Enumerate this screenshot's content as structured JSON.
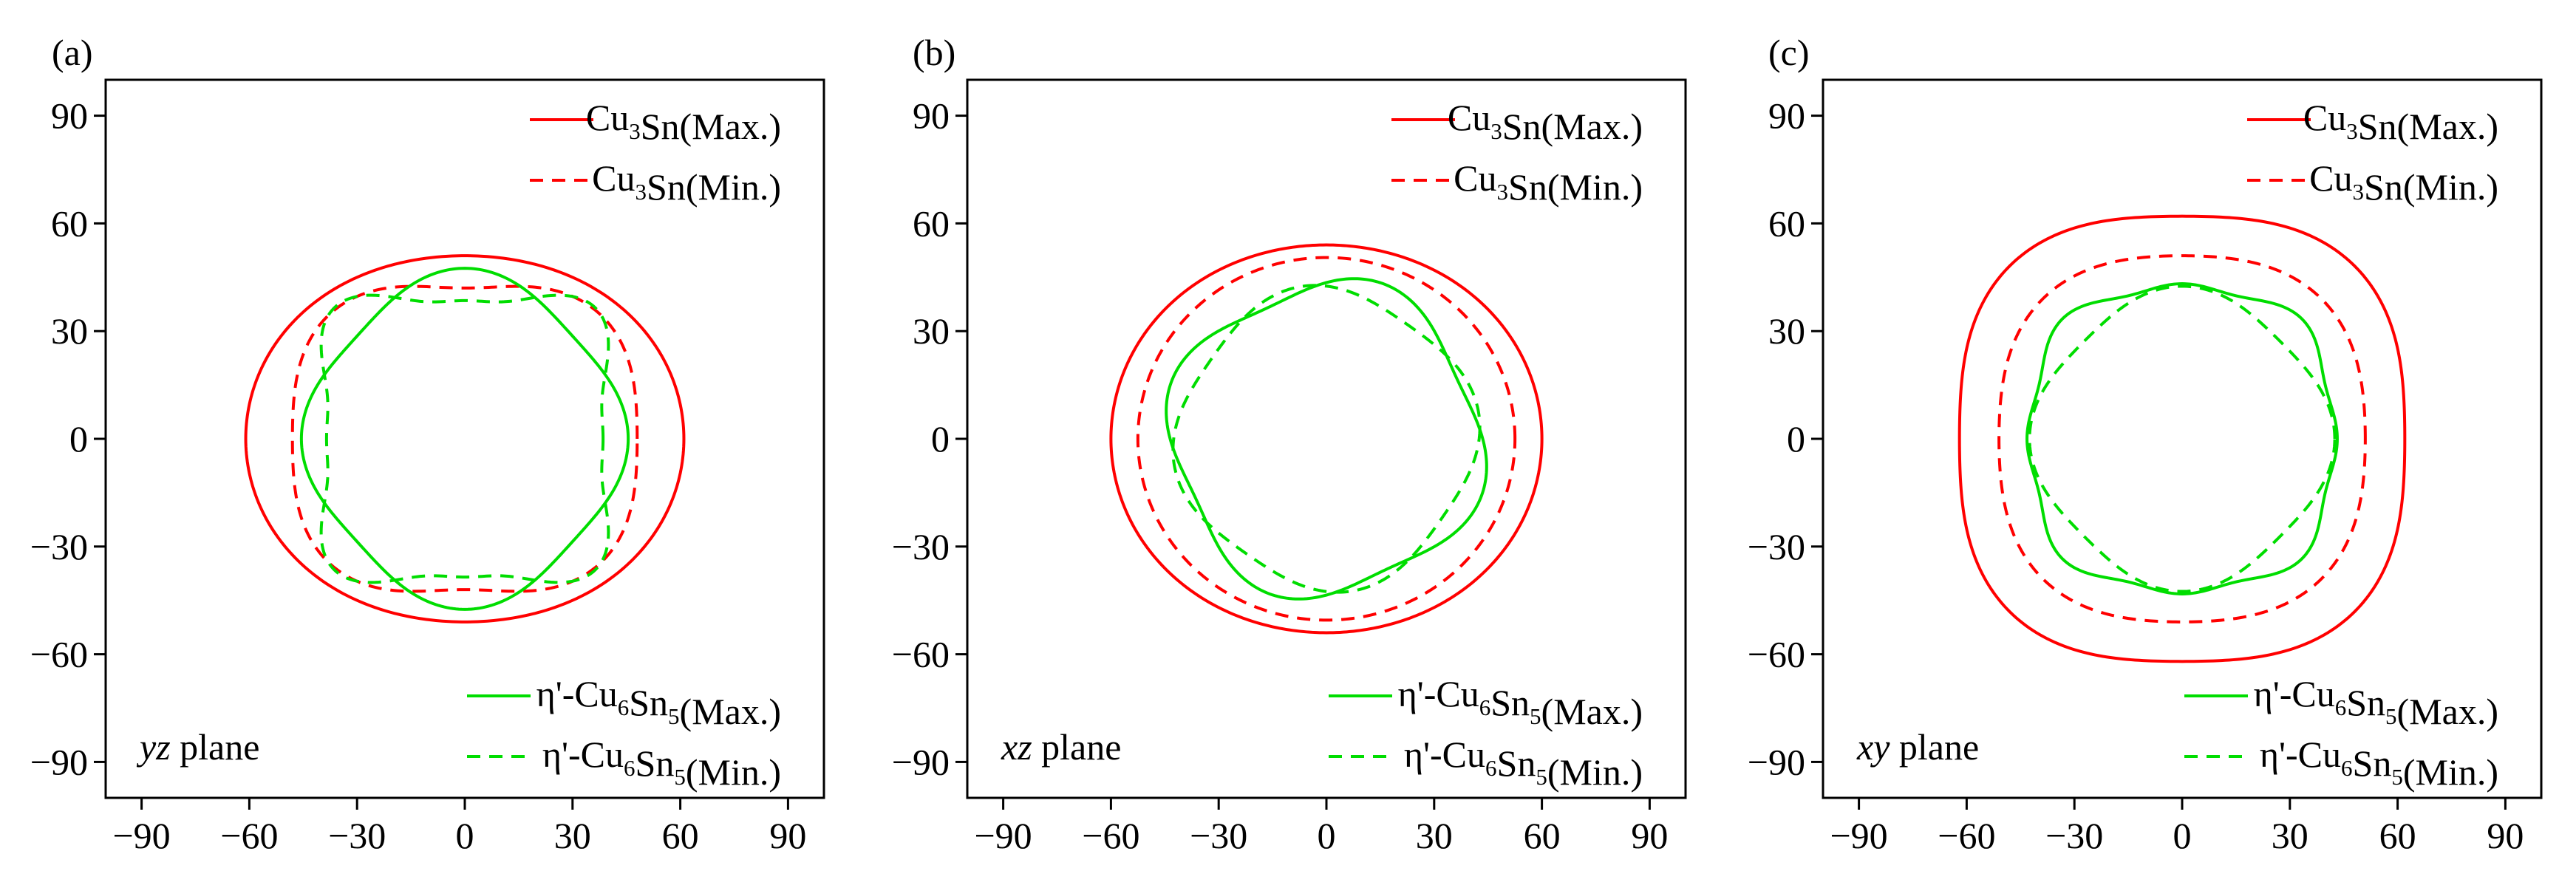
{
  "chart_data": [
    {
      "panel_label": "(a)",
      "type": "line",
      "polar": true,
      "plane_label": {
        "italic": "yz",
        "rest": " plane"
      },
      "xlim": [
        -100,
        100
      ],
      "ylim": [
        -100,
        100
      ],
      "xticks": [
        -90,
        -60,
        -30,
        0,
        30,
        60,
        90
      ],
      "yticks": [
        -90,
        -60,
        -30,
        0,
        30,
        60,
        90
      ],
      "series": [
        {
          "name": "Cu₃Sn(Max.)",
          "color": "#ff0000",
          "dash": "solid",
          "radius": {
            "base": 56,
            "terms": [
              {
                "n": 2,
                "amp": 5,
                "phase": 0
              }
            ]
          }
        },
        {
          "name": "Cu₃Sn(Min.)",
          "color": "#ff0000",
          "dash": "dashed",
          "radius": {
            "base": 48,
            "terms": [
              {
                "n": 2,
                "amp": 3,
                "phase": 0
              },
              {
                "n": 4,
                "amp": 3,
                "phase": 45
              }
            ]
          }
        },
        {
          "name": "η'-Cu₆Sn₅(Max.)",
          "color": "#00dd00",
          "dash": "solid",
          "radius": {
            "base": 44,
            "terms": [
              {
                "n": 2,
                "amp": -1,
                "phase": 0
              },
              {
                "n": 4,
                "amp": -2.5,
                "phase": 45
              }
            ]
          }
        },
        {
          "name": "η'-Cu₆Sn₅(Min.)",
          "color": "#00dd00",
          "dash": "dashed",
          "radius": {
            "base": 43.5,
            "terms": [
              {
                "n": 4,
                "amp": 6.5,
                "phase": 45
              },
              {
                "n": 8,
                "amp": 1.5,
                "phase": 45
              }
            ]
          }
        }
      ]
    },
    {
      "panel_label": "(b)",
      "type": "line",
      "polar": true,
      "plane_label": {
        "italic": "xz",
        "rest": " plane"
      },
      "xlim": [
        -100,
        100
      ],
      "ylim": [
        -100,
        100
      ],
      "xticks": [
        -90,
        -60,
        -30,
        0,
        30,
        60,
        90
      ],
      "yticks": [
        -90,
        -60,
        -30,
        0,
        30,
        60,
        90
      ],
      "series": [
        {
          "name": "Cu₃Sn(Max.)",
          "color": "#ff0000",
          "dash": "solid",
          "radius": {
            "base": 57,
            "terms": [
              {
                "n": 2,
                "amp": 3,
                "phase": 0
              }
            ]
          }
        },
        {
          "name": "Cu₃Sn(Min.)",
          "color": "#ff0000",
          "dash": "dashed",
          "radius": {
            "base": 51.5,
            "terms": [
              {
                "n": 2,
                "amp": 1,
                "phase": 0
              }
            ]
          }
        },
        {
          "name": "η'-Cu₆Sn₅(Max.)",
          "color": "#00dd00",
          "dash": "solid",
          "radius": {
            "base": 43,
            "terms": [
              {
                "n": 4,
                "amp": -3,
                "phase": 25
              }
            ]
          }
        },
        {
          "name": "η'-Cu₆Sn₅(Min.)",
          "color": "#00dd00",
          "dash": "dashed",
          "radius": {
            "base": 41,
            "terms": [
              {
                "n": 4,
                "amp": 2,
                "phase": 10
              }
            ]
          }
        }
      ]
    },
    {
      "panel_label": "(c)",
      "type": "line",
      "polar": true,
      "plane_label": {
        "italic": "xy",
        "rest": " plane"
      },
      "xlim": [
        -100,
        100
      ],
      "ylim": [
        -100,
        100
      ],
      "xticks": [
        -90,
        -60,
        -30,
        0,
        30,
        60,
        90
      ],
      "yticks": [
        -90,
        -60,
        -30,
        0,
        30,
        60,
        90
      ],
      "series": [
        {
          "name": "Cu₃Sn(Max.)",
          "color": "#ff0000",
          "dash": "solid",
          "radius": {
            "base": 65,
            "terms": [
              {
                "n": 4,
                "amp": 3,
                "phase": 45
              }
            ]
          }
        },
        {
          "name": "Cu₃Sn(Min.)",
          "color": "#ff0000",
          "dash": "dashed",
          "radius": {
            "base": 53,
            "terms": [
              {
                "n": 4,
                "amp": 2,
                "phase": 45
              }
            ]
          }
        },
        {
          "name": "η'-Cu₆Sn₅(Max.)",
          "color": "#00dd00",
          "dash": "solid",
          "radius": {
            "base": 44,
            "terms": [
              {
                "n": 4,
                "amp": -2,
                "phase": 0
              },
              {
                "n": 8,
                "amp": 1.2,
                "phase": 0
              }
            ]
          }
        },
        {
          "name": "η'-Cu₆Sn₅(Min.)",
          "color": "#00dd00",
          "dash": "dashed",
          "radius": {
            "base": 40.5,
            "terms": [
              {
                "n": 4,
                "amp": 2,
                "phase": 0
              }
            ]
          }
        }
      ]
    }
  ]
}
